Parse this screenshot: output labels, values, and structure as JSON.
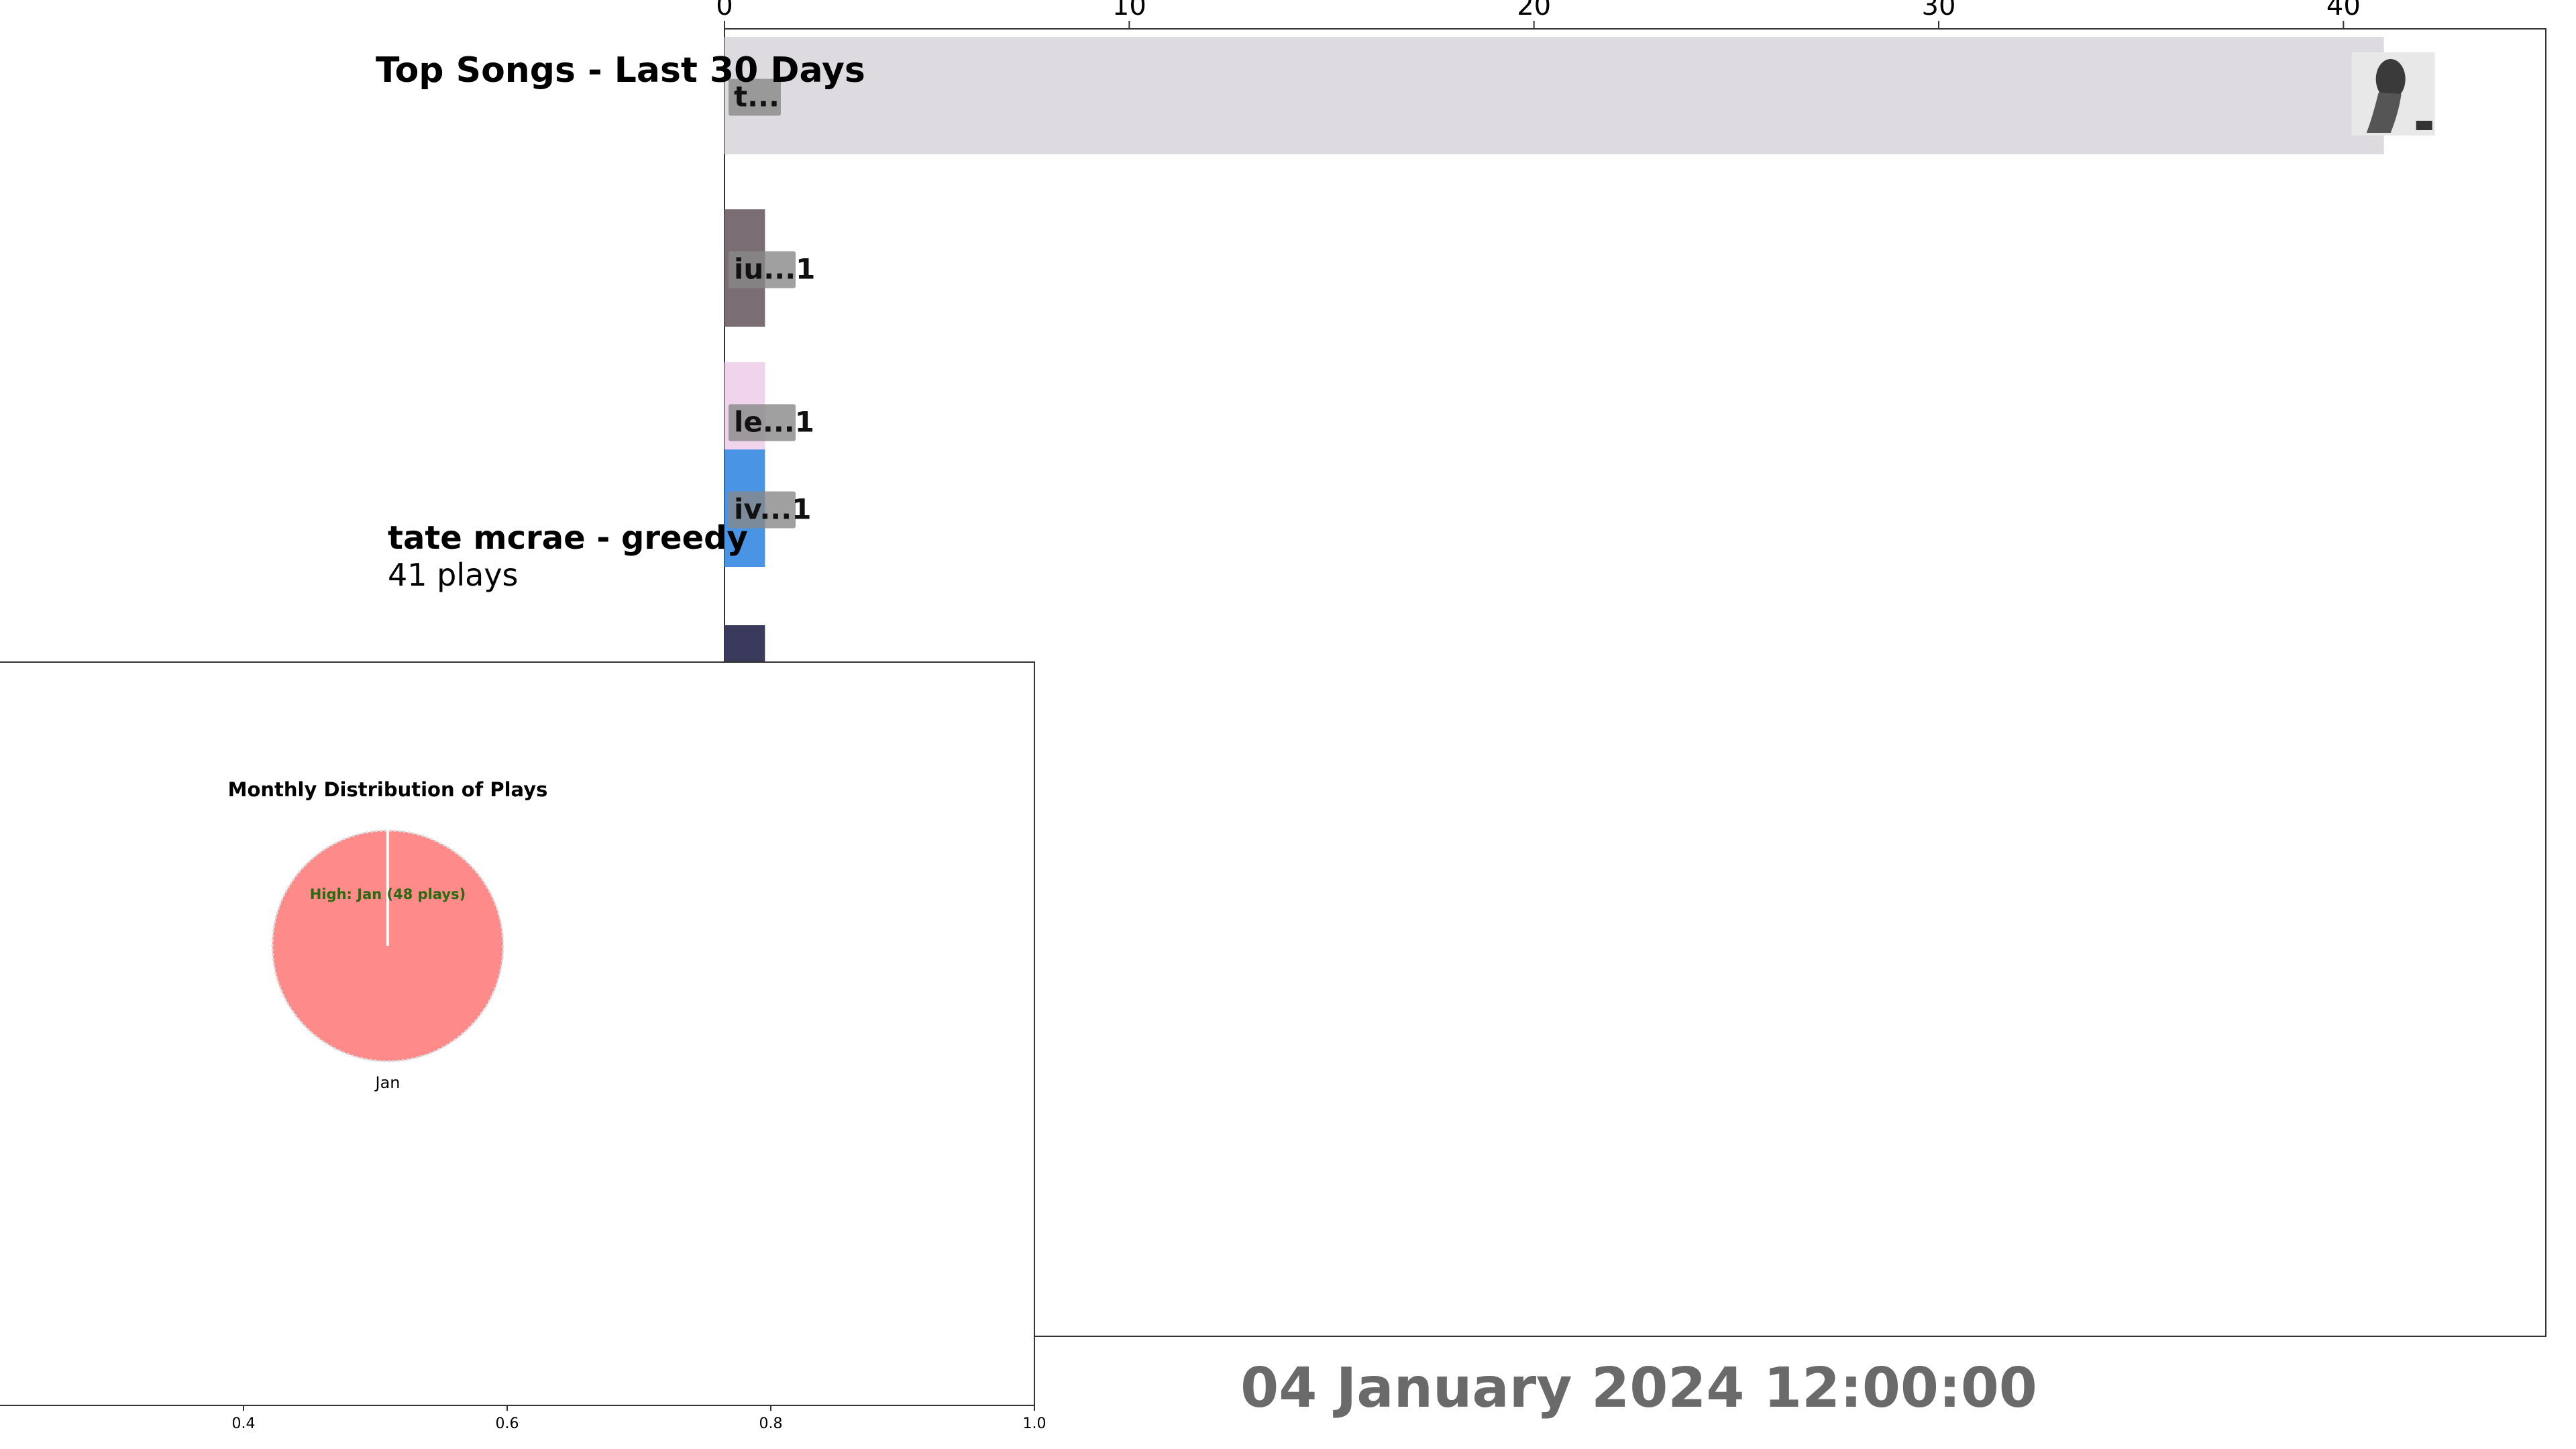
{
  "chart_data": [
    {
      "type": "bar",
      "orientation": "horizontal",
      "title": "Top Songs - Last 30 Days",
      "xlim": [
        0,
        45
      ],
      "x_ticks": [
        0,
        10,
        20,
        30,
        40
      ],
      "grid": false,
      "bars": [
        {
          "label": "t...",
          "value": 41,
          "color": "#dddbe0",
          "has_album_art": true
        },
        {
          "label": "iu...1",
          "value": 1,
          "color": "#7a6d74"
        },
        {
          "label": "le...1",
          "value": 1,
          "color": "#f0d4ec"
        },
        {
          "label": "iv...1",
          "value": 1,
          "color": "#4a94e6"
        },
        {
          "label": "",
          "value": 1,
          "color": "#3a3b5c"
        }
      ],
      "highlight": {
        "song": "tate mcrae - greedy",
        "plays_text": "41 plays"
      },
      "date_text": "04 January 2024 12:00:00"
    },
    {
      "type": "pie",
      "title": "Monthly Distribution of Plays",
      "slices": [
        {
          "label": "Jan",
          "value": 48,
          "color": "#ff8a8a"
        }
      ],
      "annotation": "High: Jan (48 plays)",
      "annotation_color": "#2a6a10",
      "x_ticks": [
        "0.4",
        "0.6",
        "0.8",
        "1.0"
      ]
    }
  ]
}
